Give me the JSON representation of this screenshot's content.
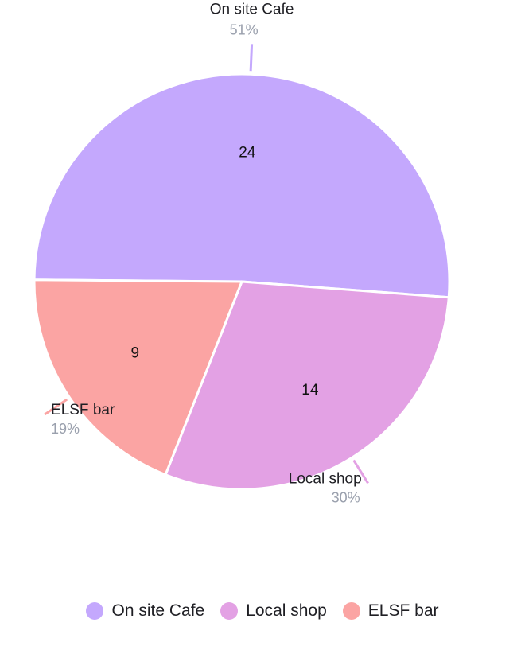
{
  "chart_data": {
    "type": "pie",
    "categories": [
      "On site Cafe",
      "Local shop",
      "ELSF bar"
    ],
    "values": [
      24,
      14,
      9
    ],
    "percentages": [
      "51%",
      "30%",
      "19%"
    ],
    "colors": [
      "#c4a8fd",
      "#e3a1e4",
      "#fba4a3"
    ],
    "legend_position": "bottom"
  }
}
